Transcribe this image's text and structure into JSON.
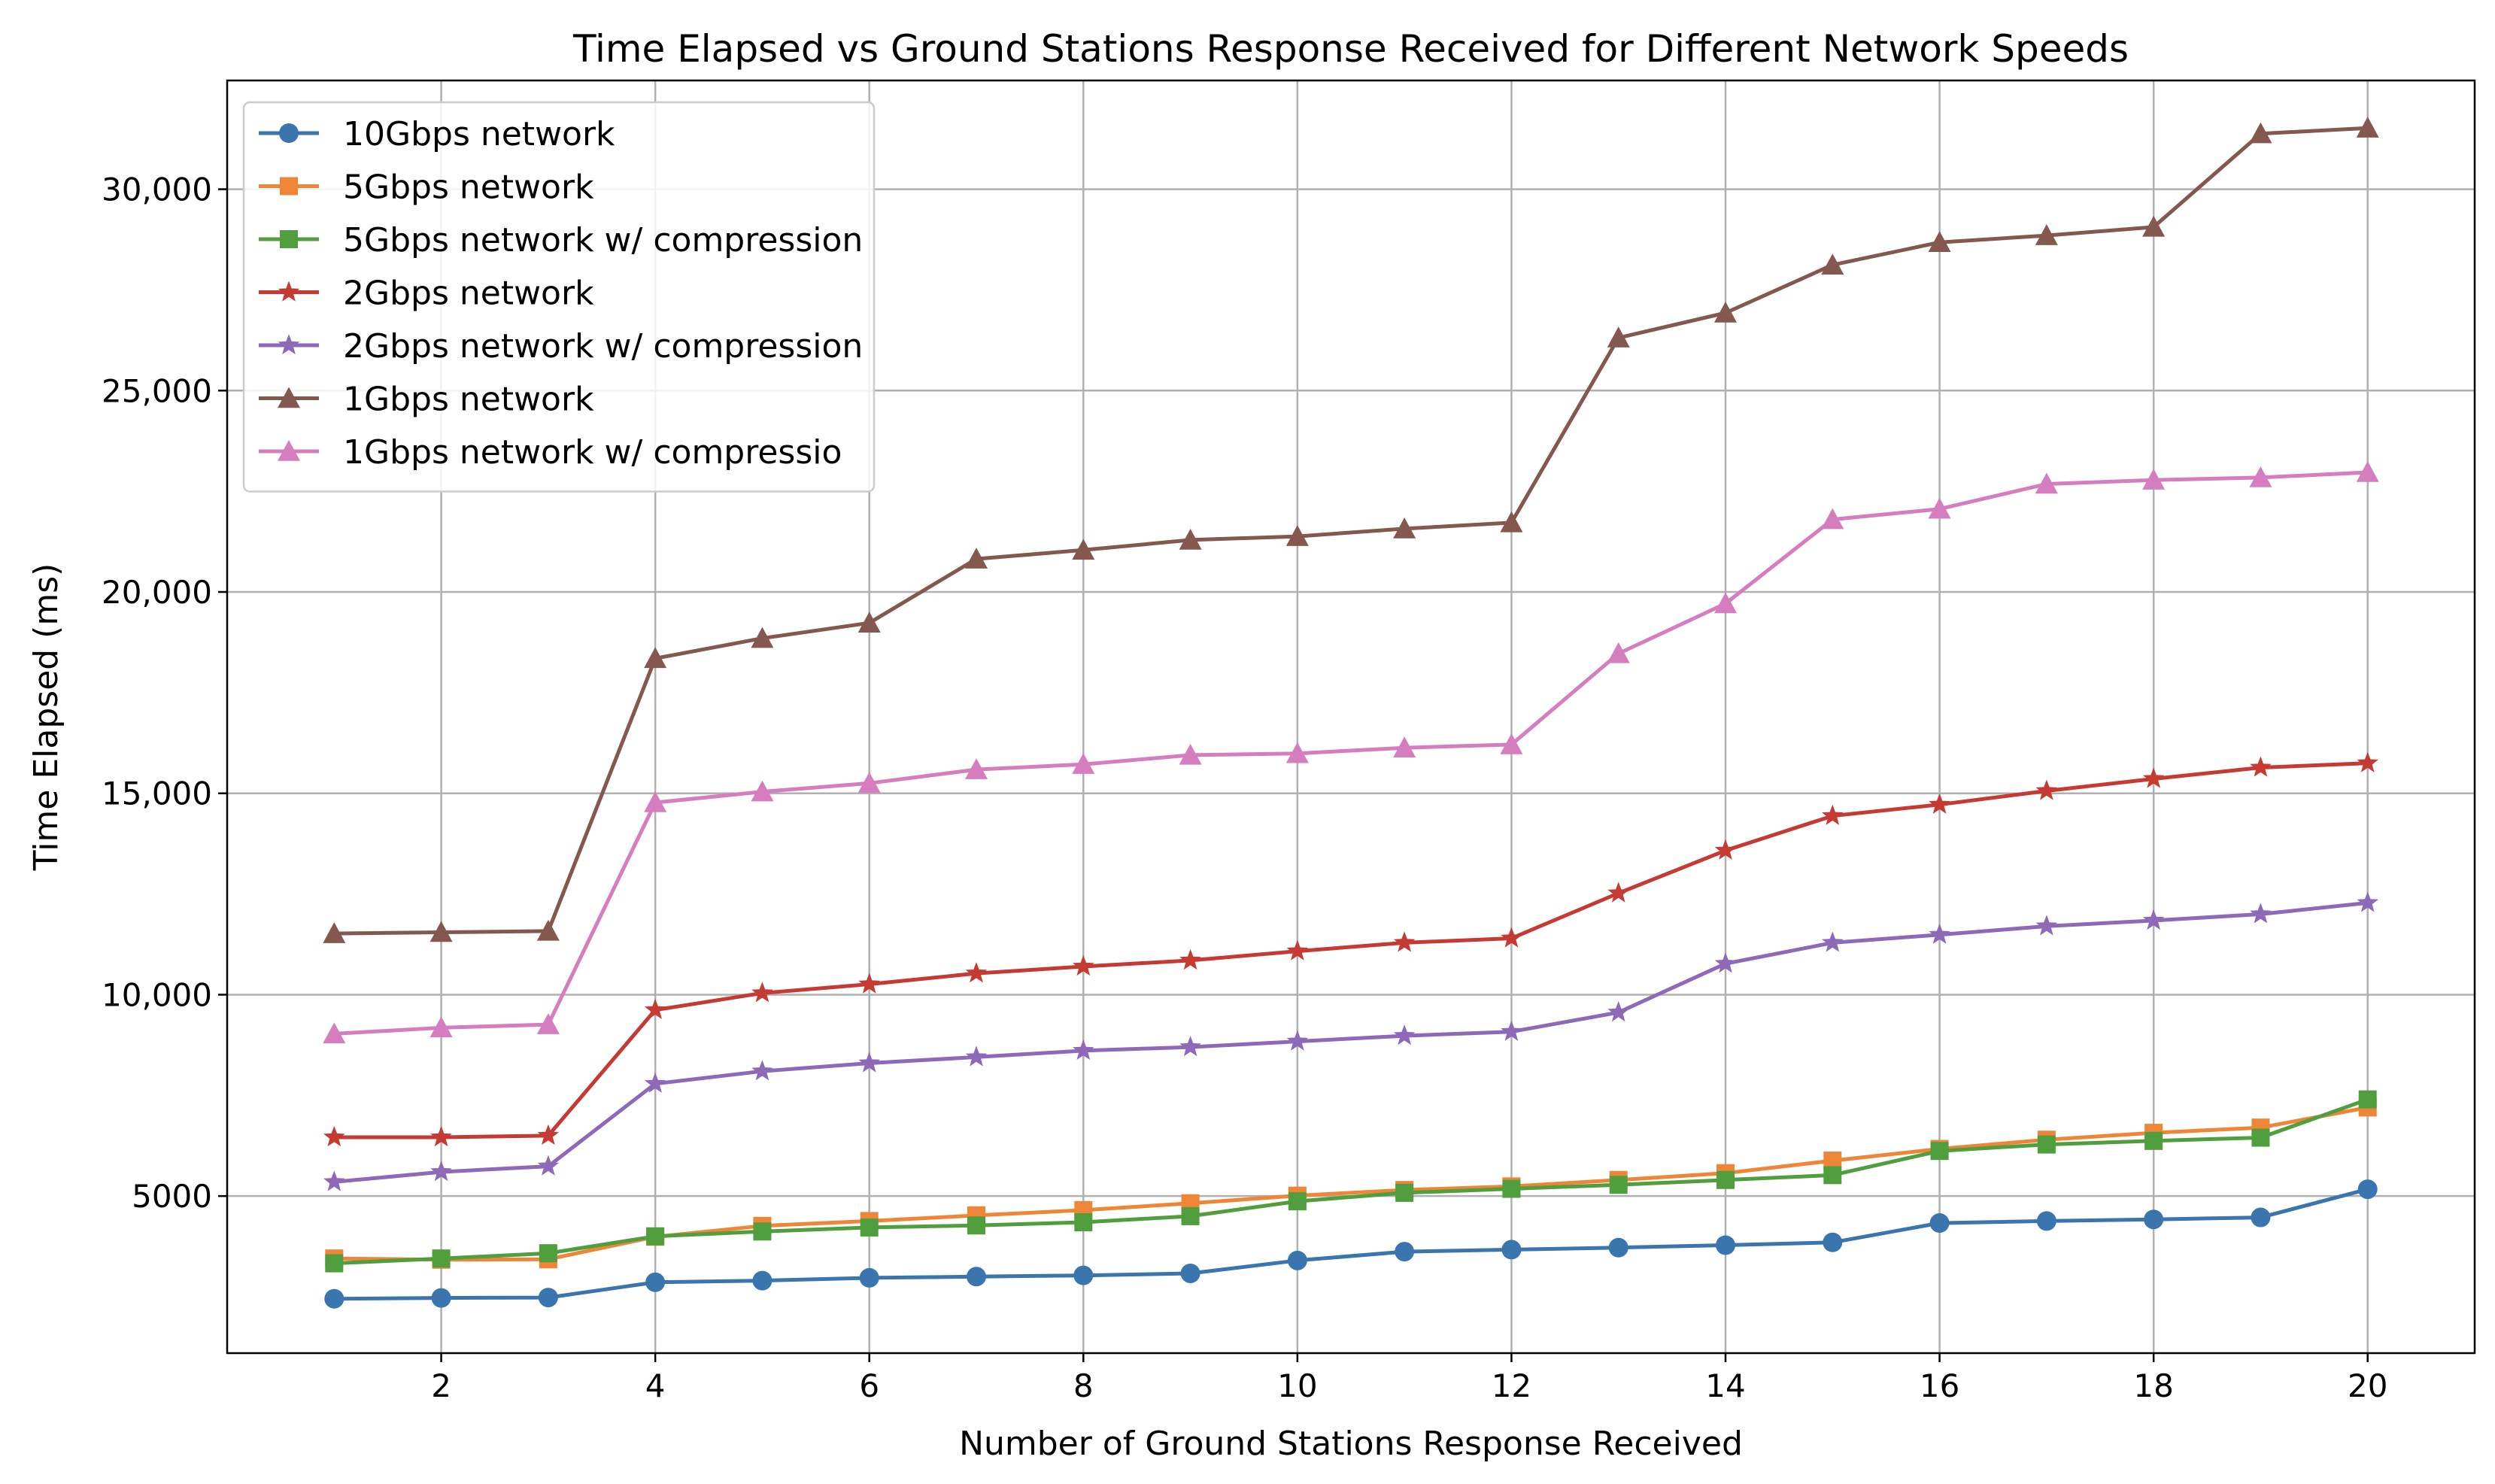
{
  "chart_data": {
    "type": "line",
    "title": "Time Elapsed vs Ground Stations Response Received for Different Network Speeds",
    "xlabel": "Number of Ground Stations Response Received",
    "ylabel": "Time Elapsed (ms)",
    "xlim": [
      0.0,
      21.0
    ],
    "ylim": [
      1100,
      32700
    ],
    "x": [
      1,
      2,
      3,
      4,
      5,
      6,
      7,
      8,
      9,
      10,
      11,
      12,
      13,
      14,
      15,
      16,
      17,
      18,
      19,
      20
    ],
    "xticks": [
      2,
      4,
      6,
      8,
      10,
      12,
      14,
      16,
      18,
      20
    ],
    "xtick_labels": [
      "2",
      "4",
      "6",
      "8",
      "10",
      "12",
      "14",
      "16",
      "18",
      "20"
    ],
    "yticks": [
      5000,
      10000,
      15000,
      20000,
      25000,
      30000
    ],
    "ytick_labels": [
      "5000",
      "10,000",
      "15,000",
      "20,000",
      "25,000",
      "30,000"
    ],
    "grid": true,
    "legend_position": "top-left",
    "series": [
      {
        "name": "10Gbps network",
        "color": "#3a75ae",
        "marker": "circle",
        "values": [
          2450,
          2470,
          2480,
          2860,
          2900,
          2970,
          3000,
          3030,
          3080,
          3400,
          3620,
          3670,
          3720,
          3780,
          3850,
          4330,
          4380,
          4420,
          4470,
          5170
        ]
      },
      {
        "name": "5Gbps network",
        "color": "#ef8536",
        "marker": "square",
        "values": [
          3450,
          3420,
          3430,
          3990,
          4260,
          4380,
          4520,
          4650,
          4820,
          5010,
          5150,
          5240,
          5400,
          5570,
          5880,
          6170,
          6400,
          6570,
          6700,
          7200
        ]
      },
      {
        "name": "5Gbps network w/ compression",
        "color": "#519e3e",
        "marker": "square",
        "values": [
          3330,
          3450,
          3580,
          4000,
          4120,
          4220,
          4270,
          4350,
          4500,
          4870,
          5080,
          5180,
          5280,
          5400,
          5520,
          6120,
          6280,
          6370,
          6450,
          7400
        ]
      },
      {
        "name": "2Gbps network",
        "color": "#c53a32",
        "marker": "star",
        "values": [
          6460,
          6460,
          6500,
          9620,
          10040,
          10260,
          10530,
          10700,
          10850,
          11080,
          11290,
          11400,
          12520,
          13580,
          14440,
          14720,
          15060,
          15360,
          15640,
          15750
        ]
      },
      {
        "name": "2Gbps network w/ compression",
        "color": "#8d69b8",
        "marker": "star",
        "values": [
          5350,
          5600,
          5740,
          7790,
          8100,
          8300,
          8450,
          8610,
          8700,
          8840,
          8980,
          9080,
          9560,
          10770,
          11290,
          11490,
          11700,
          11840,
          12000,
          12280
        ]
      },
      {
        "name": "1Gbps network",
        "color": "#84584e",
        "marker": "triangle",
        "values": [
          11520,
          11550,
          11580,
          18350,
          18850,
          19230,
          20820,
          21040,
          21290,
          21380,
          21570,
          21720,
          26310,
          26930,
          28120,
          28680,
          28850,
          29060,
          31380,
          31520
        ]
      },
      {
        "name": "1Gbps network w/ compressio",
        "color": "#d57dbe",
        "marker": "triangle",
        "values": [
          9030,
          9180,
          9260,
          14770,
          15040,
          15250,
          15590,
          15720,
          15950,
          15990,
          16130,
          16210,
          18470,
          19710,
          21800,
          22060,
          22680,
          22780,
          22840,
          22970
        ]
      }
    ]
  }
}
